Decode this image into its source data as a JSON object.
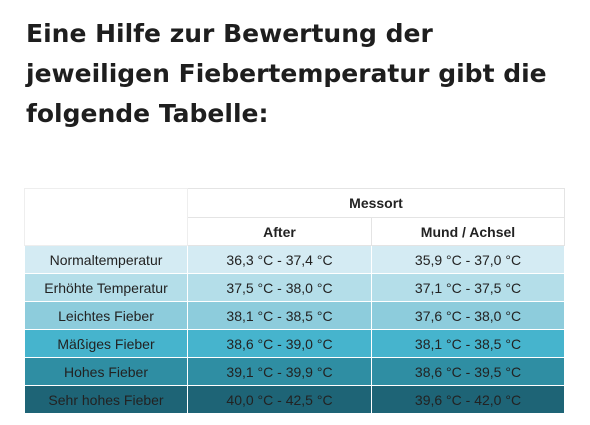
{
  "heading": {
    "text": "Eine Hilfe zur Bewertung der jeweiligen Fiebertemperatur gibt die folgende Tabelle:"
  },
  "table": {
    "group_header": "Messort",
    "columns": [
      "After",
      "Mund / Achsel"
    ],
    "rows": [
      {
        "label": "Normaltemperatur",
        "after": "36,3 °C - 37,4 °C",
        "mouth": "35,9 °C - 37,0 °C"
      },
      {
        "label": "Erhöhte Temperatur",
        "after": "37,5 °C - 38,0 °C",
        "mouth": "37,1 °C - 37,5 °C"
      },
      {
        "label": "Leichtes Fieber",
        "after": "38,1 °C - 38,5 °C",
        "mouth": "37,6 °C - 38,0 °C"
      },
      {
        "label": "Mäßiges Fieber",
        "after": "38,6 °C - 39,0 °C",
        "mouth": "38,1 °C - 38,5 °C"
      },
      {
        "label": "Hohes Fieber",
        "after": "39,1 °C - 39,9 °C",
        "mouth": "38,6 °C - 39,5 °C"
      },
      {
        "label": "Sehr hohes Fieber",
        "after": "40,0 °C - 42,5 °C",
        "mouth": "39,6 °C - 42,0 °C"
      }
    ],
    "row_colors": [
      "#d4ebf3",
      "#b4dee9",
      "#8dccdc",
      "#46b4cd",
      "#2f8ea3",
      "#1e6476"
    ]
  }
}
